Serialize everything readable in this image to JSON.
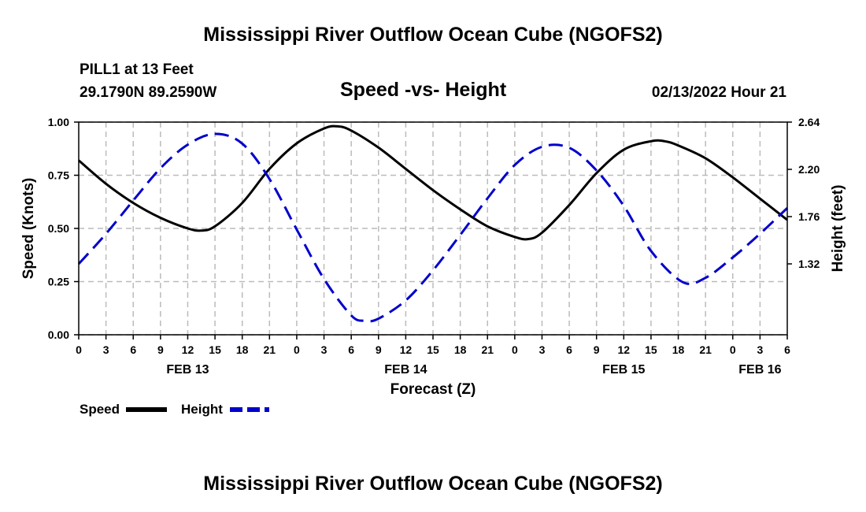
{
  "page": {
    "title_top": "Mississippi River Outflow Ocean Cube (NGOFS2)",
    "title_bottom": "Mississippi River Outflow Ocean Cube (NGOFS2)",
    "station": "PILL1 at 13 Feet",
    "coordinates": "29.1790N  89.2590W",
    "date": "02/13/2022 Hour 21"
  },
  "chart_data": {
    "type": "line",
    "title": "Speed -vs- Height",
    "xlabel": "Forecast (Z)",
    "ylabel_left": "Speed (Knots)",
    "ylabel_right": "Height (feet)",
    "x_range_hours": [
      0,
      78
    ],
    "ylim_left": [
      0,
      1.0
    ],
    "ylim_right": [
      0.66,
      2.64
    ],
    "yticks_left": [
      "0.00",
      "0.25",
      "0.50",
      "0.75",
      "1.00"
    ],
    "yticks_left_values": [
      0,
      0.25,
      0.5,
      0.75,
      1.0
    ],
    "yticks_right": [
      "1.32",
      "1.76",
      "2.20",
      "2.64"
    ],
    "yticks_right_values": [
      1.32,
      1.76,
      2.2,
      2.64
    ],
    "xtick_labels": [
      "0",
      "3",
      "6",
      "9",
      "12",
      "15",
      "18",
      "21",
      "0",
      "3",
      "6",
      "9",
      "12",
      "15",
      "18",
      "21",
      "0",
      "3",
      "6",
      "9",
      "12",
      "15",
      "18",
      "21",
      "0",
      "3",
      "6"
    ],
    "date_labels": [
      {
        "label": "FEB 13",
        "hour": 12
      },
      {
        "label": "FEB 14",
        "hour": 36
      },
      {
        "label": "FEB 15",
        "hour": 60
      },
      {
        "label": "FEB 16",
        "hour": 75
      }
    ],
    "grid": true,
    "series": [
      {
        "name": "Speed",
        "axis": "left",
        "color": "#000000",
        "dash": "solid",
        "x": [
          0,
          3,
          6,
          9,
          12,
          13.5,
          15,
          18,
          21,
          24,
          27,
          28.5,
          30,
          33,
          36,
          39,
          42,
          45,
          48,
          49.5,
          51,
          54,
          57,
          60,
          63,
          64.5,
          66,
          69,
          72,
          75,
          78
        ],
        "y": [
          0.82,
          0.71,
          0.62,
          0.55,
          0.5,
          0.49,
          0.51,
          0.62,
          0.78,
          0.9,
          0.97,
          0.98,
          0.96,
          0.88,
          0.78,
          0.68,
          0.59,
          0.51,
          0.46,
          0.45,
          0.48,
          0.61,
          0.76,
          0.87,
          0.91,
          0.91,
          0.89,
          0.83,
          0.74,
          0.64,
          0.54
        ]
      },
      {
        "name": "Height",
        "axis": "right",
        "color": "#0000cc",
        "dash": "dashed",
        "x": [
          0,
          3,
          6,
          9,
          12,
          15,
          18,
          21,
          24,
          27,
          30,
          31.5,
          33,
          36,
          39,
          42,
          45,
          48,
          51,
          54,
          57,
          60,
          63,
          66.5,
          69,
          72,
          75,
          78
        ],
        "y": [
          1.32,
          1.6,
          1.91,
          2.21,
          2.43,
          2.53,
          2.44,
          2.11,
          1.64,
          1.18,
          0.84,
          0.79,
          0.81,
          0.98,
          1.26,
          1.59,
          1.93,
          2.24,
          2.41,
          2.4,
          2.19,
          1.86,
          1.44,
          1.15,
          1.19,
          1.38,
          1.6,
          1.84
        ]
      }
    ],
    "legend": [
      {
        "label": "Speed",
        "color": "#000000",
        "dash": "solid"
      },
      {
        "label": "Height",
        "color": "#0000cc",
        "dash": "dashed"
      }
    ],
    "legend_placement": "bottom-left"
  }
}
